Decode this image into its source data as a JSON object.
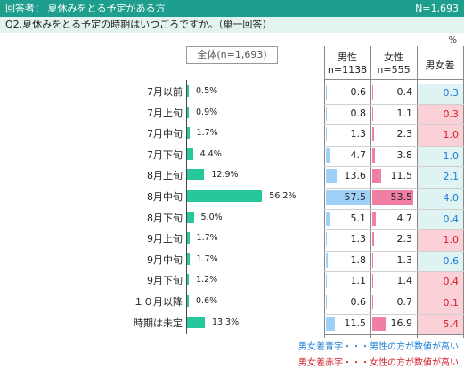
{
  "header": {
    "respondent": "回答者： 夏休みをとる予定がある方",
    "n_total": "N=1,693"
  },
  "question": "Q2.夏休みをとる予定の時期はいつごろですか。（単一回答）",
  "unit": "%",
  "total_label": "全体(n=1,693)",
  "table_headers": {
    "male": "男性",
    "male_n": "n=1138",
    "female": "女性",
    "female_n": "n=555",
    "diff": "男女差"
  },
  "legend": {
    "blue": "男女差青字・・・男性の方が数値が高い",
    "red": "男女差赤字・・・女性の方が数値が高い"
  },
  "colors": {
    "bar": "#26c79a",
    "male_bar": "#9fd0f5",
    "female_bar": "#f17fa3",
    "diff_blue_bg": "#dff4f2",
    "diff_red_bg": "#fbd0d6",
    "diff_blue_text": "#1a7ed6",
    "diff_red_text": "#d0212b"
  },
  "chart_data": {
    "type": "bar",
    "categories": [
      "7月以前",
      "7月上旬",
      "7月中旬",
      "7月下旬",
      "8月上旬",
      "8月中旬",
      "8月下旬",
      "9月上旬",
      "9月中旬",
      "9月下旬",
      "１０月以降",
      "時期は未定"
    ],
    "values": [
      0.5,
      0.9,
      1.7,
      4.4,
      12.9,
      56.2,
      5.0,
      1.7,
      1.7,
      1.2,
      0.6,
      13.3
    ],
    "value_labels": [
      "0.5%",
      "0.9%",
      "1.7%",
      "4.4%",
      "12.9%",
      "56.2%",
      "5.0%",
      "1.7%",
      "1.7%",
      "1.2%",
      "0.6%",
      "13.3%"
    ],
    "male": [
      "0.6",
      "0.8",
      "1.3",
      "4.7",
      "13.6",
      "57.5",
      "5.1",
      "1.3",
      "1.8",
      "1.1",
      "0.6",
      "11.5"
    ],
    "female": [
      "0.4",
      "1.1",
      "2.3",
      "3.8",
      "11.5",
      "53.5",
      "4.7",
      "2.3",
      "1.3",
      "1.4",
      "0.7",
      "16.9"
    ],
    "diff": [
      "0.3",
      "0.3",
      "1.0",
      "1.0",
      "2.1",
      "4.0",
      "0.4",
      "1.0",
      "0.6",
      "0.4",
      "0.1",
      "5.4"
    ],
    "diff_color": [
      "blue",
      "red",
      "red",
      "blue",
      "blue",
      "blue",
      "blue",
      "red",
      "blue",
      "red",
      "red",
      "red"
    ]
  }
}
